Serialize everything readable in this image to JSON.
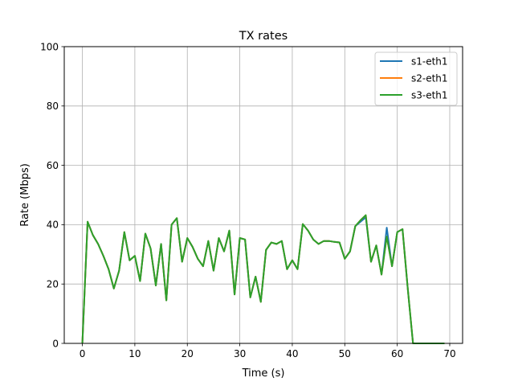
{
  "chart_data": {
    "type": "line",
    "title": "TX rates",
    "xlabel": "Time (s)",
    "ylabel": "Rate (Mbps)",
    "xlim": [
      -3.45,
      72.45
    ],
    "ylim": [
      0,
      100
    ],
    "xticks": [
      0,
      10,
      20,
      30,
      40,
      50,
      60,
      70
    ],
    "yticks": [
      0,
      20,
      40,
      60,
      80,
      100
    ],
    "grid": true,
    "legend_position": "top-right",
    "x": [
      0,
      1,
      2,
      3,
      4,
      5,
      6,
      7,
      8,
      9,
      10,
      11,
      12,
      13,
      14,
      15,
      16,
      17,
      18,
      19,
      20,
      21,
      22,
      23,
      24,
      25,
      26,
      27,
      28,
      29,
      30,
      31,
      32,
      33,
      34,
      35,
      36,
      37,
      38,
      39,
      40,
      41,
      42,
      43,
      44,
      45,
      46,
      47,
      48,
      49,
      50,
      51,
      52,
      53,
      54,
      55,
      56,
      57,
      58,
      59,
      60,
      61,
      62,
      63,
      64,
      65,
      66,
      67,
      68,
      69
    ],
    "series": [
      {
        "name": "s1-eth1",
        "color": "#1f77b4",
        "values": [
          0,
          41,
          36.5,
          33.5,
          29.5,
          25,
          18.5,
          24.5,
          37.5,
          28,
          29.5,
          21,
          37,
          32,
          19.5,
          33.5,
          14.5,
          40,
          42.2,
          27.5,
          35.5,
          32.5,
          28.5,
          26,
          34.5,
          24.5,
          35.5,
          31,
          38,
          16.5,
          35.5,
          35,
          15.5,
          22.5,
          14,
          31.5,
          34,
          33.5,
          34.5,
          25,
          28,
          25,
          40.2,
          38,
          35,
          33.5,
          34.5,
          34.5,
          34.2,
          34,
          28.5,
          31,
          39.5,
          41,
          42.5,
          27.5,
          33,
          23.2,
          39,
          26,
          37.5,
          38.5,
          18.5,
          0,
          0,
          0,
          0,
          0,
          0,
          0
        ]
      },
      {
        "name": "s2-eth1",
        "color": "#ff7f0e",
        "values": [
          0,
          41,
          36.5,
          33.5,
          29.5,
          25,
          18.5,
          24.5,
          37.5,
          28,
          29.5,
          21,
          37,
          32,
          19.5,
          33.5,
          14.5,
          40,
          42.2,
          27.5,
          35.5,
          32.5,
          28.5,
          26,
          34.5,
          24.5,
          35.5,
          31,
          38,
          16.5,
          35.5,
          35,
          15.5,
          22.5,
          14,
          31.5,
          34,
          33.5,
          34.5,
          25,
          28,
          25,
          40.2,
          38,
          35,
          33.5,
          34.5,
          34.5,
          34.2,
          34,
          28.5,
          31,
          39.5,
          41.5,
          43.2,
          27.5,
          33,
          23.2,
          36,
          26,
          37.5,
          38.5,
          18.5,
          0,
          0,
          0,
          0,
          0,
          0,
          0
        ]
      },
      {
        "name": "s3-eth1",
        "color": "#2ca02c",
        "values": [
          0,
          41,
          36.5,
          33.5,
          29.5,
          25,
          18.5,
          24.5,
          37.5,
          28,
          29.5,
          21,
          37,
          32,
          19.5,
          33.5,
          14.5,
          40,
          42.2,
          27.5,
          35.5,
          32.5,
          28.5,
          26,
          34.5,
          24.5,
          35.5,
          31,
          38,
          16.5,
          35.5,
          35,
          15.5,
          22.5,
          14,
          31.5,
          34,
          33.5,
          34.5,
          25,
          28,
          25,
          40.2,
          38,
          35,
          33.5,
          34.5,
          34.5,
          34.2,
          34,
          28.5,
          31,
          39.5,
          41.5,
          43.2,
          27.5,
          33,
          23.2,
          36,
          26,
          37.5,
          38.5,
          18.5,
          0,
          0,
          0,
          0,
          0,
          0,
          0
        ]
      }
    ]
  }
}
